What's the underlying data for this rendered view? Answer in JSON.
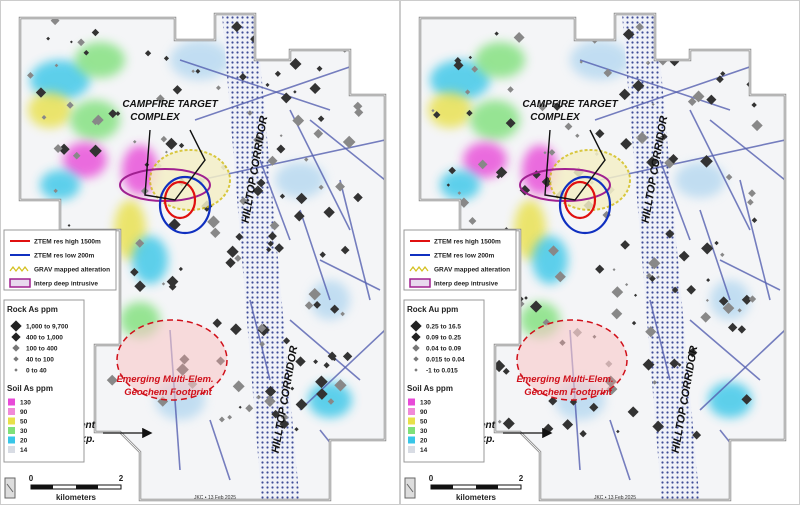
{
  "panels": [
    {
      "campfire_label": [
        "CAMPFIRE TARGET",
        "COMPLEX"
      ],
      "corridor_labels": [
        "HILLTOP CORRIDOR",
        "HILLTOP CORRIDOR"
      ],
      "legend": [
        "ZTEM res high 1500m",
        "ZTEM res low 200m",
        "GRAV mapped alteration",
        "Interp deep intrusive"
      ],
      "rock_title": "Rock As ppm",
      "rock_ranges": [
        "1,000 to 9,700",
        "400 to 1,000",
        "100 to 400",
        "40 to 100",
        "0 to 40"
      ],
      "soil_title": "Soil As ppm",
      "soil_classes": [
        "130",
        "90",
        "50",
        "30",
        "20",
        "14"
      ],
      "footprint_label": [
        "Emerging Multi-Elem.",
        "Geochem Footprint"
      ],
      "land_label": [
        "Recent",
        "Land Exp."
      ],
      "scale": {
        "start": "0",
        "end": "2",
        "unit": "kilometers"
      },
      "credit": "JKC • 13 Feb 2025"
    },
    {
      "campfire_label": [
        "CAMPFIRE TARGET",
        "COMPLEX"
      ],
      "corridor_labels": [
        "HILLTOP CORRIDOR",
        "HILLTOP CORRIDOR"
      ],
      "legend": [
        "ZTEM res high 1500m",
        "ZTEM res low 200m",
        "GRAV mapped alteration",
        "Interp deep intrusive"
      ],
      "rock_title": "Rock Au ppm",
      "rock_ranges": [
        "0.25 to 16.5",
        "0.09 to 0.25",
        "0.04 to 0.09",
        "0.015 to 0.04",
        "-1 to 0.015"
      ],
      "soil_title": "Soil As ppm",
      "soil_classes": [
        "130",
        "90",
        "50",
        "30",
        "20",
        "14"
      ],
      "footprint_label": [
        "Emerging Multi-Elem.",
        "Geochem Footprint"
      ],
      "land_label": [
        "Recent",
        "Land Exp."
      ],
      "scale": {
        "start": "0",
        "end": "2",
        "unit": "kilometers"
      },
      "credit": "JKC • 13 Feb 2025"
    }
  ]
}
